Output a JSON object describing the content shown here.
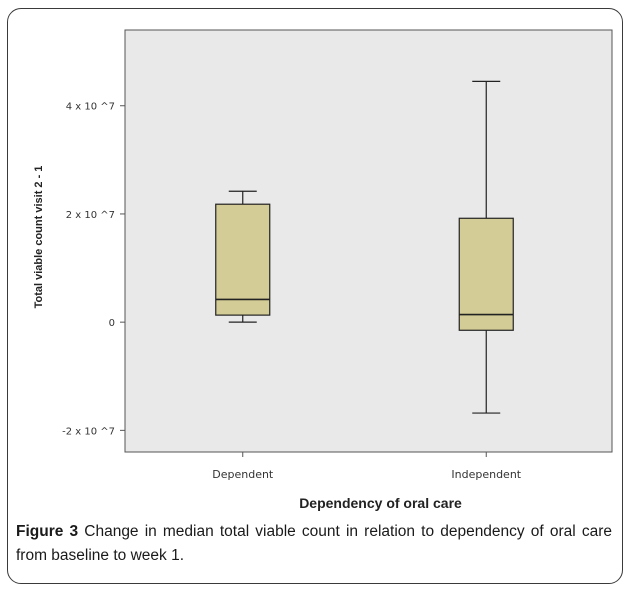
{
  "chart_data": {
    "type": "boxplot",
    "xlabel": "Dependency of oral care",
    "ylabel": "Total viable count visit 2 - 1",
    "ylim": [
      -24000000,
      54000000
    ],
    "yticks": [
      {
        "value": -20000000,
        "label": "-2 x 10 ^7"
      },
      {
        "value": 0,
        "label": "0"
      },
      {
        "value": 20000000,
        "label": "2 x 10 ^7"
      },
      {
        "value": 40000000,
        "label": "4 x 10 ^7"
      }
    ],
    "categories": [
      "Dependent",
      "Independent"
    ],
    "boxes": [
      {
        "name": "Dependent",
        "whisker_low": 0,
        "q1": 1300000,
        "median": 4200000,
        "q3": 21800000,
        "whisker_high": 24200000
      },
      {
        "name": "Independent",
        "whisker_low": -16800000,
        "q1": -1500000,
        "median": 1400000,
        "q3": 19200000,
        "whisker_high": 44500000
      }
    ],
    "box_color": "#d4cc96",
    "plot_background": "#e9e9e9"
  },
  "caption": {
    "label": "Figure 3",
    "text": " Change in median total viable count in relation to dependency of oral care from baseline to week 1."
  }
}
